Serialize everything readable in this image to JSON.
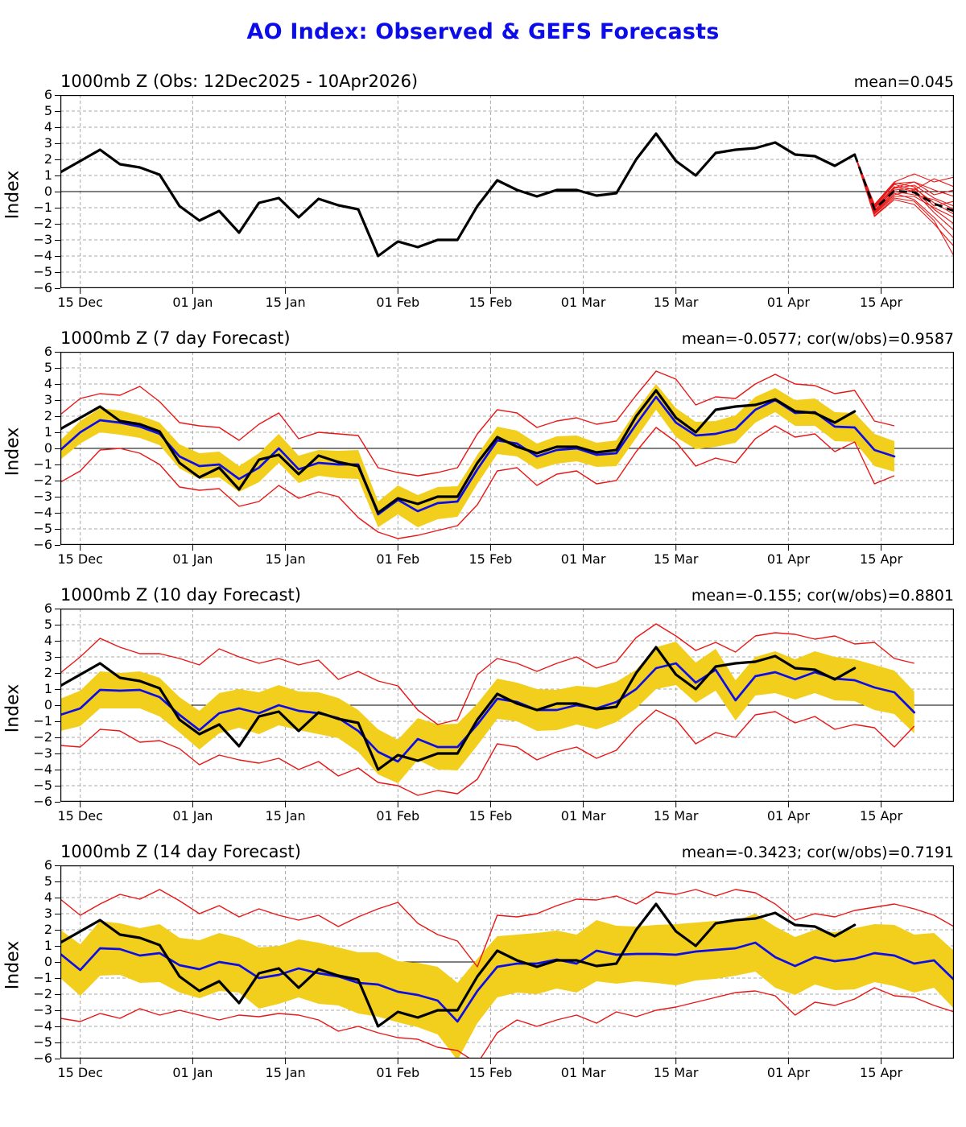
{
  "page": {
    "title": "AO Index: Observed & GEFS Forecasts"
  },
  "colors": {
    "title_blue": "#0c0ce8",
    "observed_black": "#000000",
    "ensemble_red": "#e81717",
    "mean_blue": "#0d0de8",
    "spread_gold": "#f2cf1d",
    "grid_gray": "#a8a8a8",
    "zero_line": "#000000"
  },
  "chart_data": {
    "type": "line",
    "x_axis": {
      "start_date": "12 Dec 2025",
      "range_days": [
        0,
        135
      ],
      "ticks": [
        {
          "day": 3,
          "label": "15 Dec"
        },
        {
          "day": 20,
          "label": "01 Jan"
        },
        {
          "day": 34,
          "label": "15 Jan"
        },
        {
          "day": 51,
          "label": "01 Feb"
        },
        {
          "day": 65,
          "label": "15 Feb"
        },
        {
          "day": 79,
          "label": "01 Mar"
        },
        {
          "day": 93,
          "label": "15 Mar"
        },
        {
          "day": 110,
          "label": "01 Apr"
        },
        {
          "day": 124,
          "label": "15 Apr"
        }
      ]
    },
    "y_axis": {
      "label": "Index",
      "range": [
        -6,
        6
      ],
      "tick_values": [
        6,
        5,
        4,
        3,
        2,
        1,
        0,
        -1,
        -2,
        -3,
        -4,
        -5,
        -6
      ],
      "tick_labels": [
        "6",
        "5",
        "4",
        "3",
        "2",
        "1",
        "0",
        "−1",
        "−2",
        "−3",
        "−4",
        "−5",
        "−6"
      ]
    },
    "observed": {
      "name": "Observed AO index (black)",
      "x_start": 0,
      "x_step": 3,
      "values": [
        1.2,
        1.9,
        2.6,
        1.7,
        1.5,
        1.05,
        -0.9,
        -1.8,
        -1.2,
        -2.55,
        -0.7,
        -0.4,
        -1.6,
        -0.45,
        -0.85,
        -1.1,
        -4.0,
        -3.1,
        -3.45,
        -3.0,
        -3.0,
        -0.9,
        0.7,
        0.1,
        -0.3,
        0.1,
        0.1,
        -0.25,
        -0.1,
        2.0,
        3.6,
        1.9,
        1.0,
        2.4,
        2.6,
        2.7,
        3.05,
        2.3,
        2.2,
        1.6,
        2.3
      ]
    },
    "panels": [
      {
        "id": "obs",
        "title": "1000mb Z (Obs: 12Dec2025 - 10Apr2026)",
        "stats": "mean=0.045",
        "ensemble_mean": {
          "name": "GEFS ensemble mean forecast (dashed black)",
          "x_start": 120,
          "x_step": 3,
          "values": [
            2.3,
            -1.1,
            0.05,
            -0.05,
            -0.75,
            -1.2
          ]
        },
        "ensemble_members": {
          "name": "GEFS ensemble members (red)",
          "x_start": 120,
          "x_step": 3,
          "series": [
            [
              2.3,
              -0.9,
              0.5,
              0.6,
              0.1,
              -0.3
            ],
            [
              2.3,
              -1.2,
              0.2,
              0.4,
              -0.4,
              -0.9
            ],
            [
              2.3,
              -1.4,
              -0.3,
              -0.3,
              -1.0,
              -1.6
            ],
            [
              2.3,
              -1.0,
              0.3,
              0.0,
              -1.3,
              -2.4
            ],
            [
              2.3,
              -1.3,
              -0.1,
              -0.5,
              -1.6,
              -2.9
            ],
            [
              2.3,
              -0.8,
              0.6,
              1.1,
              0.6,
              0.9
            ],
            [
              2.3,
              -1.55,
              -0.5,
              -0.8,
              -2.0,
              -3.4
            ],
            [
              2.3,
              -1.15,
              0.1,
              0.2,
              -0.7,
              -1.4
            ],
            [
              2.3,
              -0.95,
              0.45,
              0.1,
              0.8,
              0.3
            ],
            [
              2.3,
              -1.35,
              -0.2,
              0.1,
              -1.1,
              -2.0
            ],
            [
              2.3,
              -1.05,
              0.25,
              0.6,
              -0.2,
              0.1
            ],
            [
              2.3,
              -1.25,
              0.0,
              -0.2,
              -0.5,
              -1.1
            ],
            [
              2.3,
              -0.85,
              0.55,
              0.3,
              -0.9,
              -0.6
            ],
            [
              2.3,
              -1.5,
              -0.4,
              -0.6,
              -1.8,
              -4.0
            ]
          ]
        }
      },
      {
        "id": "f7",
        "title": "1000mb Z (7 day Forecast)",
        "stats": "mean=-0.0577; cor(w/obs)=0.9587",
        "mean": {
          "name": "7-day forecast ensemble mean (blue)",
          "x_start": 0,
          "x_step": 3,
          "values": [
            -0.1,
            1.0,
            1.75,
            1.6,
            1.35,
            0.9,
            -0.5,
            -1.1,
            -1.0,
            -1.9,
            -1.2,
            0.0,
            -1.3,
            -0.9,
            -1.0,
            -1.0,
            -4.1,
            -3.2,
            -3.9,
            -3.4,
            -3.3,
            -1.3,
            0.5,
            0.3,
            -0.5,
            -0.1,
            0.0,
            -0.4,
            -0.3,
            1.5,
            3.2,
            1.6,
            0.8,
            0.9,
            1.2,
            2.4,
            3.0,
            2.2,
            2.25,
            1.35,
            1.3,
            -0.1,
            -0.5
          ]
        },
        "band_halfwidth": [
          0.6,
          0.7,
          0.75,
          0.75,
          0.7,
          0.7,
          0.75,
          0.8,
          0.8,
          0.8,
          0.9,
          0.9,
          0.85,
          0.8,
          0.85,
          0.9,
          0.8,
          0.9,
          1.0,
          1.0,
          0.95,
          0.9,
          0.85,
          0.8,
          0.8,
          0.85,
          0.8,
          0.75,
          0.8,
          0.85,
          0.8,
          0.9,
          0.85,
          0.8,
          0.85,
          0.8,
          0.75,
          0.8,
          0.85,
          0.9,
          0.9,
          1.0,
          0.95
        ],
        "env_hi": [
          2.1,
          3.1,
          3.4,
          3.3,
          3.85,
          2.9,
          1.6,
          1.4,
          1.3,
          0.5,
          1.5,
          2.2,
          0.6,
          1.0,
          0.9,
          0.8,
          -1.2,
          -1.5,
          -1.7,
          -1.5,
          -1.2,
          0.9,
          2.4,
          2.2,
          1.3,
          1.7,
          1.9,
          1.5,
          1.7,
          3.3,
          4.8,
          4.3,
          2.7,
          3.2,
          3.1,
          4.0,
          4.6,
          4.0,
          3.9,
          3.4,
          3.6,
          1.7,
          1.4
        ],
        "env_lo": [
          -2.1,
          -1.4,
          -0.1,
          0.0,
          -0.3,
          -1.0,
          -2.4,
          -2.6,
          -2.5,
          -3.6,
          -3.3,
          -2.3,
          -3.1,
          -2.7,
          -3.0,
          -4.3,
          -5.2,
          -5.6,
          -5.4,
          -5.1,
          -4.8,
          -3.5,
          -1.4,
          -1.2,
          -2.3,
          -1.6,
          -1.4,
          -2.2,
          -2.0,
          -0.2,
          1.3,
          0.4,
          -1.1,
          -0.6,
          -0.9,
          0.6,
          1.4,
          0.7,
          0.9,
          -0.2,
          0.4,
          -2.2,
          -1.7
        ]
      },
      {
        "id": "f10",
        "title": "1000mb Z (10 day Forecast)",
        "stats": "mean=-0.155; cor(w/obs)=0.8801",
        "mean": {
          "name": "10-day forecast ensemble mean (blue)",
          "x_start": 0,
          "x_step": 3,
          "values": [
            -0.6,
            -0.2,
            0.95,
            0.9,
            0.95,
            0.5,
            -0.6,
            -1.55,
            -0.5,
            -0.2,
            -0.5,
            0.0,
            -0.35,
            -0.5,
            -0.8,
            -1.6,
            -2.9,
            -3.5,
            -2.1,
            -2.6,
            -2.6,
            -1.2,
            0.4,
            0.2,
            -0.3,
            -0.3,
            0.0,
            -0.2,
            0.2,
            1.0,
            2.3,
            2.6,
            1.4,
            2.2,
            0.3,
            1.8,
            2.05,
            1.6,
            2.05,
            1.65,
            1.55,
            1.1,
            0.8,
            -0.45
          ]
        },
        "band_halfwidth": [
          1.0,
          1.1,
          1.15,
          1.1,
          1.15,
          1.2,
          1.1,
          1.2,
          1.25,
          1.2,
          1.3,
          1.25,
          1.2,
          1.3,
          1.25,
          1.3,
          1.4,
          1.35,
          1.3,
          1.4,
          1.45,
          1.3,
          1.25,
          1.2,
          1.3,
          1.25,
          1.2,
          1.3,
          1.25,
          1.2,
          1.3,
          1.35,
          1.25,
          1.3,
          1.25,
          1.2,
          1.3,
          1.25,
          1.3,
          1.35,
          1.3,
          1.4,
          1.35,
          1.3
        ],
        "env_hi": [
          2.0,
          3.0,
          4.15,
          3.6,
          3.2,
          3.2,
          2.9,
          2.5,
          3.5,
          3.0,
          2.6,
          2.9,
          2.5,
          2.8,
          1.6,
          2.1,
          1.5,
          1.2,
          -0.3,
          -1.2,
          -0.9,
          1.9,
          2.9,
          2.6,
          2.1,
          2.6,
          3.0,
          2.3,
          2.7,
          4.2,
          5.05,
          4.3,
          3.4,
          3.9,
          3.3,
          4.3,
          4.5,
          4.4,
          4.1,
          4.3,
          3.8,
          3.9,
          2.9,
          2.6
        ],
        "env_lo": [
          -2.5,
          -2.6,
          -1.5,
          -1.6,
          -2.3,
          -2.2,
          -2.7,
          -3.7,
          -3.1,
          -3.4,
          -3.6,
          -3.3,
          -4.0,
          -3.5,
          -4.4,
          -3.9,
          -4.8,
          -5.0,
          -5.6,
          -5.3,
          -5.5,
          -4.6,
          -2.4,
          -2.6,
          -3.4,
          -2.9,
          -2.6,
          -3.3,
          -2.8,
          -1.4,
          -0.3,
          -0.9,
          -2.4,
          -1.7,
          -2.0,
          -0.6,
          -0.4,
          -1.1,
          -0.7,
          -1.5,
          -1.2,
          -1.4,
          -2.6,
          -1.3
        ]
      },
      {
        "id": "f14",
        "title": "1000mb Z (14 day Forecast)",
        "stats": "mean=-0.3423; cor(w/obs)=0.7191",
        "mean": {
          "name": "14-day forecast ensemble mean (blue)",
          "x_start": 0,
          "x_step": 3,
          "values": [
            0.5,
            -0.5,
            0.85,
            0.8,
            0.4,
            0.55,
            -0.2,
            -0.45,
            0.0,
            -0.2,
            -1.0,
            -0.8,
            -0.4,
            -0.7,
            -0.9,
            -1.3,
            -1.4,
            -1.85,
            -2.05,
            -2.4,
            -3.7,
            -1.8,
            -0.3,
            -0.1,
            -0.1,
            0.15,
            -0.1,
            0.7,
            0.45,
            0.5,
            0.5,
            0.45,
            0.65,
            0.75,
            0.85,
            1.2,
            0.3,
            -0.25,
            0.3,
            0.05,
            0.2,
            0.55,
            0.4,
            -0.1,
            0.1,
            -1.1
          ]
        },
        "band_halfwidth": [
          1.5,
          1.6,
          1.7,
          1.6,
          1.7,
          1.8,
          1.7,
          1.8,
          1.8,
          1.7,
          1.9,
          1.8,
          1.8,
          1.9,
          1.8,
          1.9,
          2.0,
          1.9,
          2.0,
          2.1,
          2.4,
          2.0,
          1.9,
          1.8,
          1.9,
          1.8,
          1.8,
          1.9,
          1.8,
          1.7,
          1.8,
          1.9,
          1.8,
          1.8,
          1.7,
          1.8,
          1.9,
          1.8,
          1.7,
          1.8,
          1.9,
          1.8,
          1.9,
          1.8,
          1.7,
          1.8
        ],
        "env_hi": [
          3.9,
          2.9,
          3.6,
          4.2,
          3.9,
          4.5,
          3.8,
          3.0,
          3.5,
          2.8,
          3.3,
          2.9,
          2.6,
          2.9,
          2.2,
          2.8,
          3.3,
          3.7,
          2.4,
          1.7,
          1.3,
          -0.3,
          2.9,
          2.8,
          3.0,
          3.5,
          3.9,
          3.85,
          4.1,
          3.6,
          4.35,
          4.2,
          4.5,
          4.1,
          4.5,
          4.3,
          3.6,
          2.6,
          3.0,
          2.8,
          3.2,
          3.4,
          3.6,
          3.3,
          2.9,
          2.2
        ],
        "env_lo": [
          -3.5,
          -3.7,
          -3.2,
          -3.5,
          -2.9,
          -3.3,
          -3.0,
          -3.3,
          -3.6,
          -3.3,
          -3.4,
          -3.2,
          -3.3,
          -3.6,
          -4.3,
          -4.0,
          -4.4,
          -4.7,
          -4.8,
          -5.3,
          -5.5,
          -6.3,
          -4.4,
          -3.6,
          -4.0,
          -3.6,
          -3.3,
          -3.8,
          -3.1,
          -3.4,
          -3.0,
          -2.8,
          -2.5,
          -2.2,
          -1.9,
          -1.8,
          -2.1,
          -3.3,
          -2.5,
          -2.7,
          -2.3,
          -1.6,
          -2.1,
          -2.2,
          -2.7,
          -3.1
        ]
      }
    ]
  }
}
